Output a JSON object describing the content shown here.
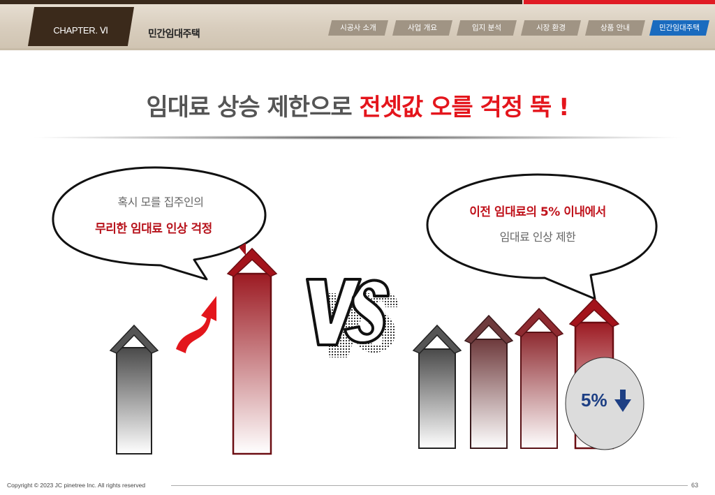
{
  "header": {
    "chapter": "CHAPTER. Ⅵ",
    "section": "민간임대주택",
    "nav": [
      {
        "label": "시공사 소개",
        "active": false
      },
      {
        "label": "사업 개요",
        "active": false
      },
      {
        "label": "입지 분석",
        "active": false
      },
      {
        "label": "시장 환경",
        "active": false
      },
      {
        "label": "상품 안내",
        "active": false
      },
      {
        "label": "민간임대주택",
        "active": true
      }
    ]
  },
  "headline": {
    "part1": "임대료 상승 제한으로 ",
    "part2": "전셋값 오를 걱정 뚝 !"
  },
  "left_bubble": {
    "line1": "혹시 모를 집주인의",
    "line2": "무리한 임대료 인상 걱정"
  },
  "right_bubble": {
    "line1": "이전 임대료의 5% 이내에서",
    "line2": "임대료 인상 제한"
  },
  "vs_text": "VS",
  "percent_badge": "5%",
  "icons": [
    "arrow-up-icon",
    "red-curved-arrow-icon",
    "arrow-down-icon"
  ],
  "colors": {
    "accent_red": "#e4151c",
    "dark_brown": "#3b2a1b",
    "nav_active": "#1a6bbf",
    "badge_blue": "#1d3f84"
  },
  "footer": {
    "copyright": "Copyright © 2023 JC pinetree Inc. All rights reserved",
    "page": "63"
  }
}
